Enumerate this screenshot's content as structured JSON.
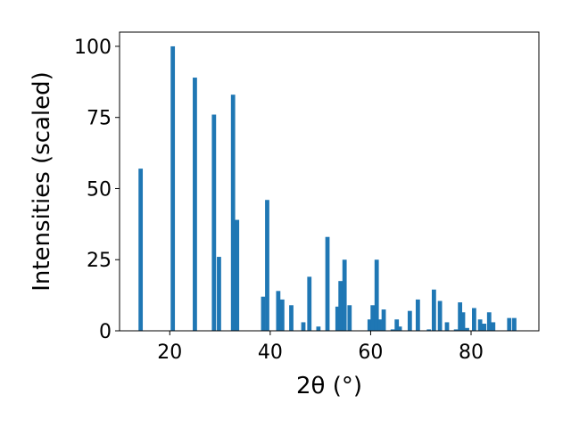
{
  "chart_data": {
    "type": "bar",
    "xlabel": "2θ (°)",
    "ylabel": "Intensities (scaled)",
    "xlim": [
      10,
      93.5
    ],
    "ylim": [
      0,
      105
    ],
    "xticks": [
      20,
      40,
      60,
      80
    ],
    "yticks": [
      0,
      25,
      50,
      75,
      100
    ],
    "bar_width_units": 0.85,
    "bar_color": "#1f77b4",
    "series": [
      {
        "x": [
          14.2,
          20.6,
          25.0,
          28.8,
          29.8,
          32.6,
          33.4,
          38.6,
          39.4,
          41.6,
          42.4,
          44.2,
          46.6,
          47.8,
          49.6,
          51.4,
          53.4,
          54.0,
          54.8,
          55.8,
          59.8,
          60.4,
          61.2,
          61.8,
          62.6,
          64.4,
          65.2,
          65.8,
          67.8,
          69.4,
          71.6,
          72.6,
          73.8,
          75.2,
          77.0,
          77.8,
          78.4,
          79.2,
          80.6,
          81.8,
          82.6,
          83.6,
          84.4,
          87.6,
          88.6
        ],
        "values": [
          57,
          100,
          89,
          76,
          26,
          83,
          39,
          12,
          46,
          14,
          11,
          9,
          3,
          19,
          1.5,
          33,
          8.5,
          17.5,
          25,
          9,
          4,
          9,
          25,
          4,
          7.5,
          0.5,
          4,
          1.5,
          7,
          11,
          0.5,
          14.5,
          10.5,
          3,
          0.5,
          10,
          6.5,
          1,
          8,
          4,
          2.5,
          6.5,
          3,
          4.5,
          4.5
        ]
      }
    ]
  }
}
